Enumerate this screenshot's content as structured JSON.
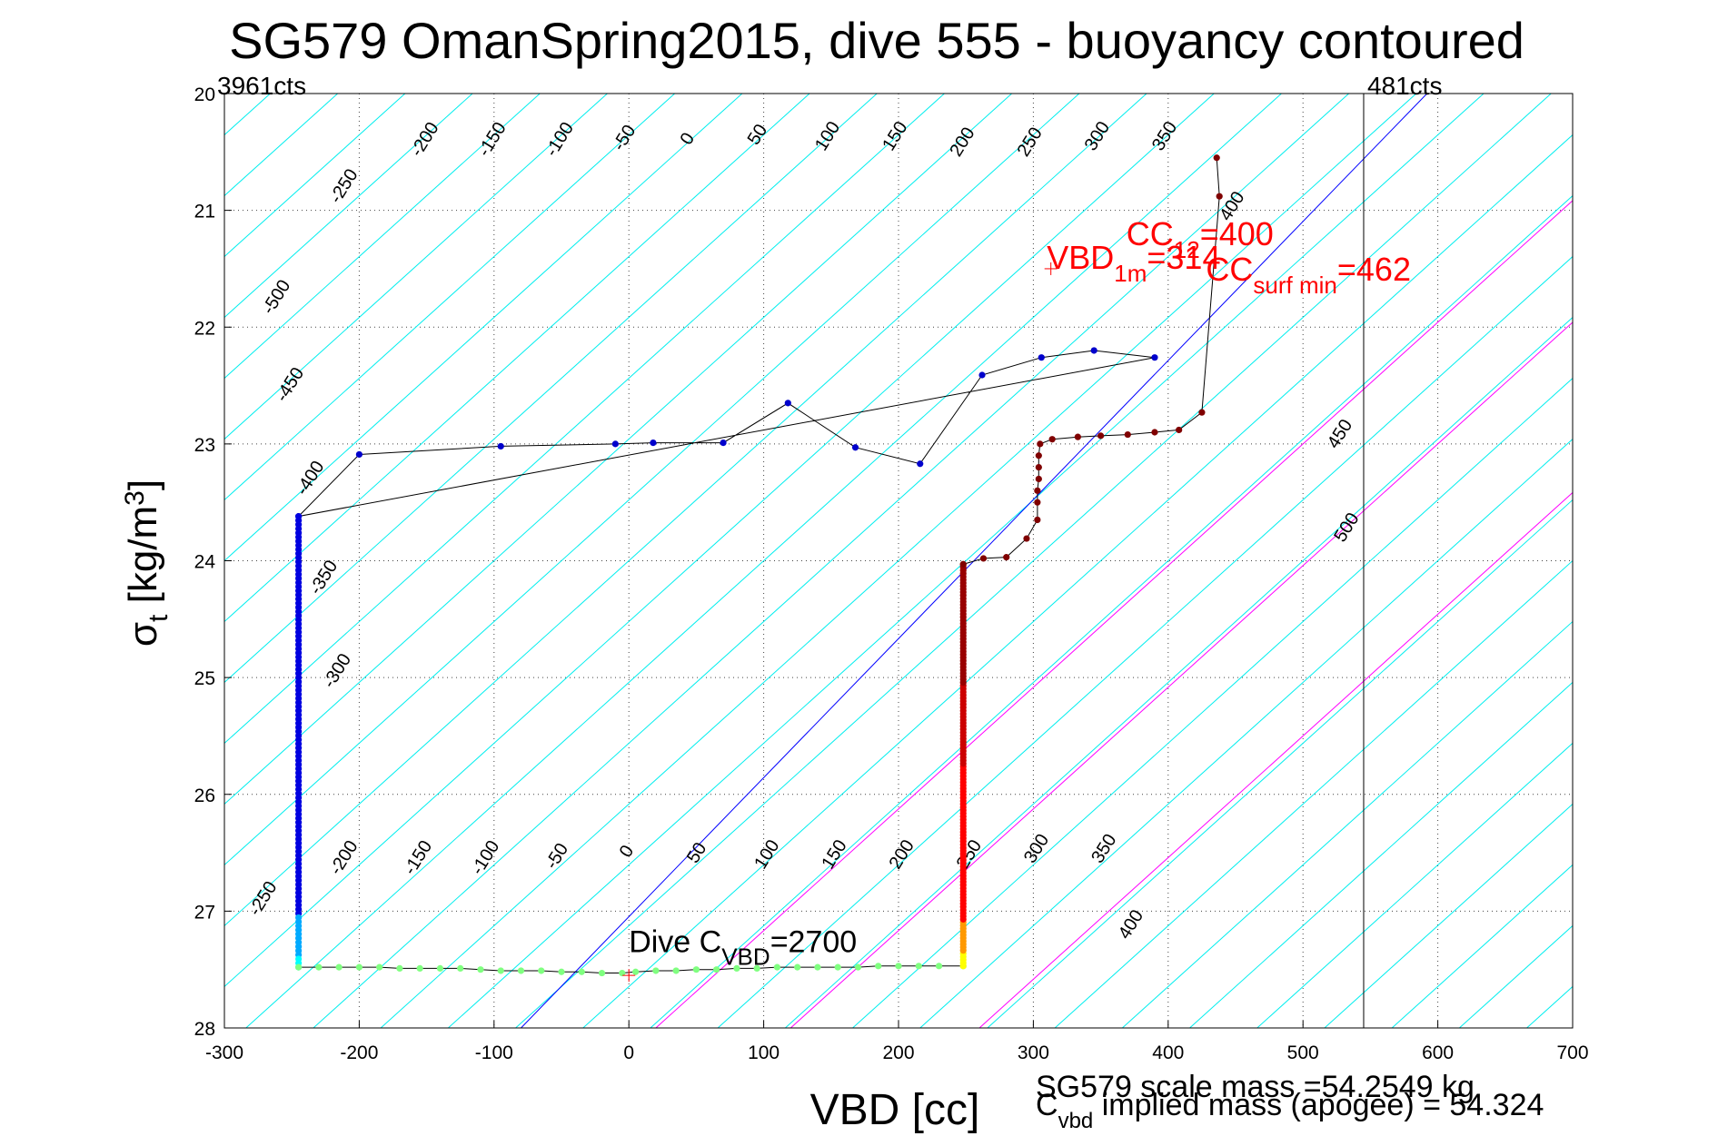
{
  "chart_data": {
    "type": "scatter",
    "title": "SG579 OmanSpring2015, dive 555 - buoyancy contoured",
    "xlabel": "VBD [cc]",
    "ylabel_main": "σ",
    "ylabel_sub": "t",
    "ylabel_rest": " [kg/m",
    "ylabel_sup": "3",
    "ylabel_end": "]",
    "xlim": [
      -300,
      700
    ],
    "ylim": [
      20,
      28
    ],
    "y_reversed": true,
    "grid": true,
    "x_ticks": [
      -300,
      -200,
      -100,
      0,
      100,
      200,
      300,
      400,
      500,
      600,
      700
    ],
    "y_ticks": [
      20,
      21,
      22,
      23,
      24,
      25,
      26,
      27,
      28
    ],
    "label_left_cts": "3961cts",
    "label_right_cts": "481cts",
    "right_limit_vbd": 545,
    "contour_slope_cc_per_kgm3": 96,
    "contour_step": 50,
    "contour_labels_upper": [
      {
        "value": "-500",
        "x": -265,
        "y": 21.9
      },
      {
        "value": "-450",
        "x": -255,
        "y": 22.65
      },
      {
        "value": "-400",
        "x": -240,
        "y": 23.45
      },
      {
        "value": "-350",
        "x": -230,
        "y": 24.3
      },
      {
        "value": "-300",
        "x": -220,
        "y": 25.1
      },
      {
        "value": "-250",
        "x": -215,
        "y": 20.95
      },
      {
        "value": "-200",
        "x": -155,
        "y": 20.55
      },
      {
        "value": "-150",
        "x": -105,
        "y": 20.55
      },
      {
        "value": "-100",
        "x": -55,
        "y": 20.55
      },
      {
        "value": "-50",
        "x": -5,
        "y": 20.5
      },
      {
        "value": "0",
        "x": 45,
        "y": 20.45
      },
      {
        "value": "50",
        "x": 95,
        "y": 20.45
      },
      {
        "value": "100",
        "x": 145,
        "y": 20.5
      },
      {
        "value": "150",
        "x": 195,
        "y": 20.5
      },
      {
        "value": "200",
        "x": 245,
        "y": 20.55
      },
      {
        "value": "250",
        "x": 295,
        "y": 20.55
      },
      {
        "value": "300",
        "x": 345,
        "y": 20.5
      },
      {
        "value": "350",
        "x": 395,
        "y": 20.5
      },
      {
        "value": "400",
        "x": 445,
        "y": 21.1
      },
      {
        "value": "450",
        "x": 525,
        "y": 23.05
      },
      {
        "value": "500",
        "x": 530,
        "y": 23.85
      }
    ],
    "contour_labels_lower": [
      {
        "value": "-250",
        "x": -275,
        "y": 27.05
      },
      {
        "value": "-200",
        "x": -215,
        "y": 26.7
      },
      {
        "value": "-150",
        "x": -160,
        "y": 26.7
      },
      {
        "value": "-100",
        "x": -110,
        "y": 26.7
      },
      {
        "value": "-50",
        "x": -55,
        "y": 26.65
      },
      {
        "value": "0",
        "x": 0,
        "y": 26.55
      },
      {
        "value": "50",
        "x": 50,
        "y": 26.6
      },
      {
        "value": "100",
        "x": 100,
        "y": 26.65
      },
      {
        "value": "150",
        "x": 150,
        "y": 26.65
      },
      {
        "value": "200",
        "x": 200,
        "y": 26.65
      },
      {
        "value": "250",
        "x": 250,
        "y": 26.65
      },
      {
        "value": "300",
        "x": 300,
        "y": 26.6
      },
      {
        "value": "350",
        "x": 350,
        "y": 26.6
      },
      {
        "value": "400",
        "x": 370,
        "y": 27.25
      }
    ],
    "zero_contour_color": "#0000ff",
    "cc_contour_colors": "#ff00ff",
    "cc_contours": [
      20,
      120,
      260
    ],
    "contour_color": "#00eeee",
    "annotation_vbd": {
      "main": "VBD",
      "sub": "1m",
      "eq": "=314",
      "x": 310,
      "y": 21.5,
      "color": "#ff0000"
    },
    "annotation_cc12": {
      "main": "CC",
      "sub": "12",
      "eq": "=400",
      "x": 400,
      "y": 21.3,
      "color": "#ff0000"
    },
    "annotation_ccsurf": {
      "main": "CC",
      "sub": "surf min",
      "eq": "=462",
      "x": 455,
      "y": 21.6,
      "color": "#ff0000"
    },
    "annotation_dive": {
      "main": "Dive C",
      "sub": "VBD",
      "eq": "=2700",
      "x": 0,
      "y": 27.35
    },
    "footer_mass": "SG579 scale mass =54.2549 kg",
    "footer_implied_main": "C",
    "footer_implied_sub": "vbd",
    "footer_implied_rest": " implied mass (apogee) = 54.324",
    "series": [
      {
        "segment": "descent",
        "points": [
          [
            -245,
            23.62
          ],
          [
            -200,
            23.09
          ],
          [
            -95,
            23.02
          ],
          [
            -10,
            23.0
          ],
          [
            18,
            22.99
          ],
          [
            70,
            22.99
          ],
          [
            118,
            22.65
          ],
          [
            168,
            23.03
          ],
          [
            216,
            23.17
          ],
          [
            262,
            22.41
          ],
          [
            306,
            22.26
          ],
          [
            345,
            22.2
          ],
          [
            390,
            22.26
          ]
        ]
      },
      {
        "segment": "descent_deep",
        "x_const": -245,
        "y_start": 23.62,
        "y_end": 27.48,
        "n": 110
      },
      {
        "segment": "bottom",
        "points": [
          [
            -245,
            27.48
          ],
          [
            -230,
            27.48
          ],
          [
            -215,
            27.48
          ],
          [
            -200,
            27.48
          ],
          [
            -185,
            27.48
          ],
          [
            -170,
            27.49
          ],
          [
            -155,
            27.49
          ],
          [
            -140,
            27.49
          ],
          [
            -125,
            27.49
          ],
          [
            -110,
            27.5
          ],
          [
            -95,
            27.51
          ],
          [
            -80,
            27.51
          ],
          [
            -65,
            27.51
          ],
          [
            -50,
            27.52
          ],
          [
            -35,
            27.52
          ],
          [
            -20,
            27.53
          ],
          [
            -5,
            27.53
          ],
          [
            5,
            27.52
          ],
          [
            20,
            27.51
          ],
          [
            35,
            27.51
          ],
          [
            50,
            27.5
          ],
          [
            65,
            27.5
          ],
          [
            80,
            27.49
          ],
          [
            95,
            27.49
          ],
          [
            110,
            27.48
          ],
          [
            125,
            27.48
          ],
          [
            140,
            27.48
          ],
          [
            155,
            27.48
          ],
          [
            170,
            27.48
          ],
          [
            185,
            27.47
          ],
          [
            200,
            27.47
          ],
          [
            215,
            27.47
          ],
          [
            230,
            27.47
          ],
          [
            248,
            27.47
          ]
        ]
      },
      {
        "segment": "ascent_deep",
        "x_const": 248,
        "y_start": 27.47,
        "y_end": 24.03,
        "n": 130
      },
      {
        "segment": "ascent",
        "points": [
          [
            248,
            24.03
          ],
          [
            263,
            23.98
          ],
          [
            280,
            23.97
          ],
          [
            295,
            23.81
          ],
          [
            303,
            23.65
          ],
          [
            303,
            23.5
          ],
          [
            303,
            23.4
          ],
          [
            304,
            23.3
          ],
          [
            304,
            23.2
          ],
          [
            304,
            23.1
          ],
          [
            305,
            23.0
          ],
          [
            314,
            22.96
          ],
          [
            333,
            22.94
          ],
          [
            350,
            22.93
          ],
          [
            370,
            22.92
          ],
          [
            390,
            22.9
          ],
          [
            408,
            22.88
          ],
          [
            425,
            22.73
          ],
          [
            438,
            20.88
          ],
          [
            436,
            20.55
          ]
        ]
      }
    ]
  }
}
